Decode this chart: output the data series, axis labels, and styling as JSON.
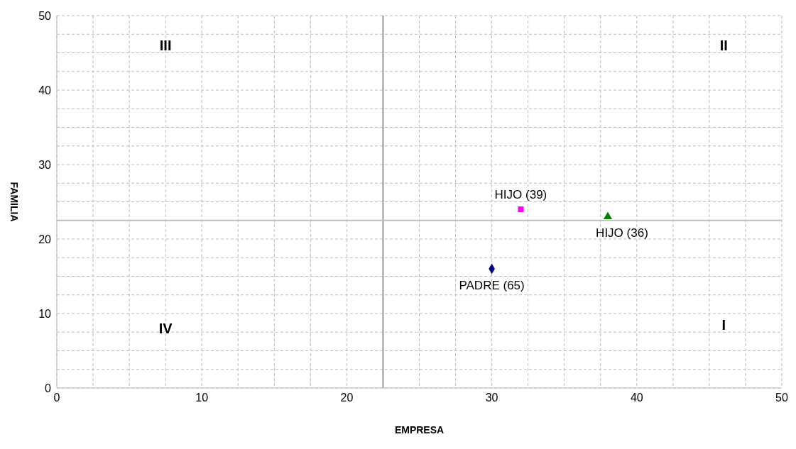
{
  "chart_data": {
    "type": "scatter",
    "xlabel": "EMPRESA",
    "ylabel": "FAMILIA",
    "xlim": [
      0,
      50
    ],
    "ylim": [
      0,
      50
    ],
    "xticks": [
      0,
      {
        "value": 2.5,
        "label": null
      },
      {
        "value": 5,
        "label": null
      },
      {
        "value": 7.5,
        "label": null
      },
      10,
      {
        "value": 12.5,
        "label": null
      },
      {
        "value": 15,
        "label": null
      },
      {
        "value": 17.5,
        "label": null
      },
      20,
      {
        "value": 22.5,
        "label": null
      },
      {
        "value": 25,
        "label": null
      },
      {
        "value": 27.5,
        "label": null
      },
      30,
      {
        "value": 32.5,
        "label": null
      },
      {
        "value": 35,
        "label": null
      },
      {
        "value": 37.5,
        "label": null
      },
      40,
      {
        "value": 42.5,
        "label": null
      },
      {
        "value": 45,
        "label": null
      },
      {
        "value": 47.5,
        "label": null
      },
      50
    ],
    "yticks": [
      0,
      {
        "value": 2.5,
        "label": null
      },
      {
        "value": 5,
        "label": null
      },
      {
        "value": 7.5,
        "label": null
      },
      10,
      {
        "value": 12.5,
        "label": null
      },
      {
        "value": 15,
        "label": null
      },
      {
        "value": 17.5,
        "label": null
      },
      20,
      {
        "value": 22.5,
        "label": null
      },
      {
        "value": 25,
        "label": null
      },
      {
        "value": 27.5,
        "label": null
      },
      30,
      {
        "value": 32.5,
        "label": null
      },
      {
        "value": 35,
        "label": null
      },
      {
        "value": 37.5,
        "label": null
      },
      40,
      {
        "value": 42.5,
        "label": null
      },
      {
        "value": 45,
        "label": null
      },
      {
        "value": 47.5,
        "label": null
      },
      50
    ],
    "grid": true,
    "series": [
      {
        "name": "PADRE (65)",
        "color": "#000080",
        "marker": "diamond",
        "x": [
          30
        ],
        "values": [
          16
        ]
      },
      {
        "name": "HIJO (39)",
        "color": "#ff00ff",
        "marker": "square",
        "x": [
          32
        ],
        "values": [
          24
        ]
      },
      {
        "name": "HIJO (36)",
        "color": "#008000",
        "marker": "triangle",
        "x": [
          38
        ],
        "values": [
          23
        ]
      }
    ],
    "ref_lines": [
      {
        "axis": "x",
        "value": 22.5,
        "color": "#999999"
      },
      {
        "axis": "y",
        "value": 22.5,
        "color": "#c0c0c0"
      }
    ],
    "annotations": [
      "III",
      "II",
      "IV",
      "I"
    ]
  }
}
